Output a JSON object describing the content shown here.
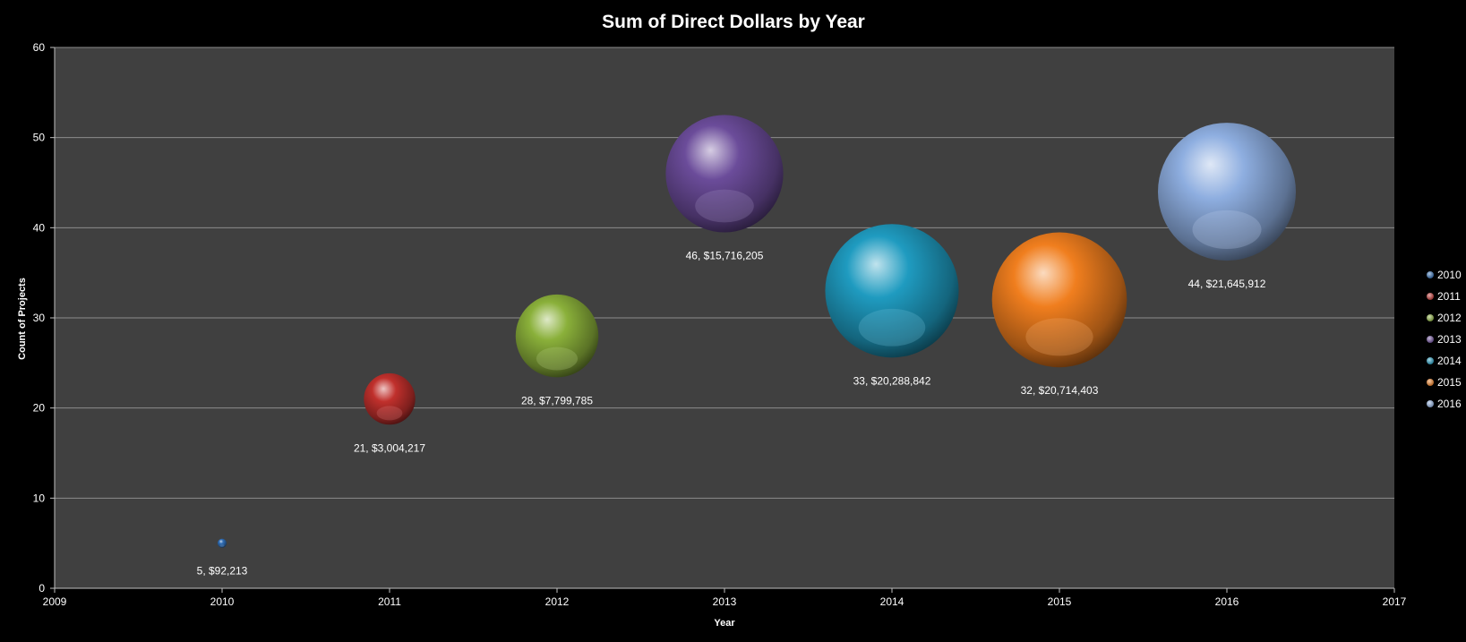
{
  "chart_data": {
    "type": "bubble",
    "title": "Sum of Direct Dollars by Year",
    "xlabel": "Year",
    "ylabel": "Count of Projects",
    "xlim": [
      2009,
      2017
    ],
    "ylim": [
      0,
      60
    ],
    "xticks": [
      2009,
      2010,
      2011,
      2012,
      2013,
      2014,
      2015,
      2016,
      2017
    ],
    "yticks": [
      0,
      10,
      20,
      30,
      40,
      50,
      60
    ],
    "grid": "horizontal",
    "legend_position": "right",
    "series": [
      {
        "name": "2010",
        "x": 2010,
        "y": 5,
        "size": 92213,
        "label": "5, $92,213",
        "color": "#2f6db5"
      },
      {
        "name": "2011",
        "x": 2011,
        "y": 21,
        "size": 3004217,
        "label": "21, $3,004,217",
        "color": "#c0302c"
      },
      {
        "name": "2012",
        "x": 2012,
        "y": 28,
        "size": 7799785,
        "label": "28, $7,799,785",
        "color": "#8ab03a"
      },
      {
        "name": "2013",
        "x": 2013,
        "y": 46,
        "size": 15716205,
        "label": "46, $15,716,205",
        "color": "#6b4c9a"
      },
      {
        "name": "2014",
        "x": 2014,
        "y": 33,
        "size": 20288842,
        "label": "33, $20,288,842",
        "color": "#1f9bc0"
      },
      {
        "name": "2015",
        "x": 2015,
        "y": 32,
        "size": 20714403,
        "label": "32, $20,714,403",
        "color": "#f07e1e"
      },
      {
        "name": "2016",
        "x": 2016,
        "y": 44,
        "size": 21645912,
        "label": "44, $21,645,912",
        "color": "#8eaee0"
      }
    ]
  }
}
